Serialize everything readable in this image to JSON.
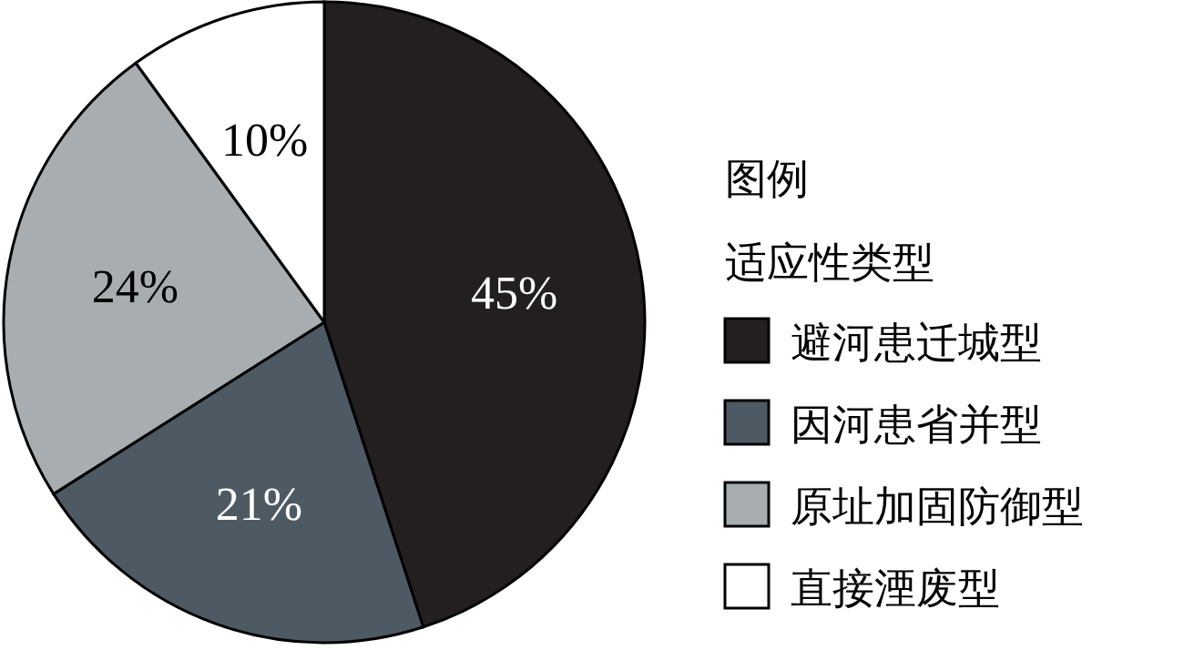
{
  "chart_data": {
    "type": "pie",
    "categories": [
      "避河患迁城型",
      "因河患省并型",
      "原址加固防御型",
      "直接湮废型"
    ],
    "values": [
      45,
      21,
      24,
      10
    ],
    "value_labels": [
      "45%",
      "21%",
      "24%",
      "10%"
    ],
    "colors": [
      "#231f20",
      "#4e5a63",
      "#a7adb1",
      "#ffffff"
    ],
    "legend": "right",
    "legend_title": "图例",
    "annotations": [
      "适应性类型"
    ]
  }
}
